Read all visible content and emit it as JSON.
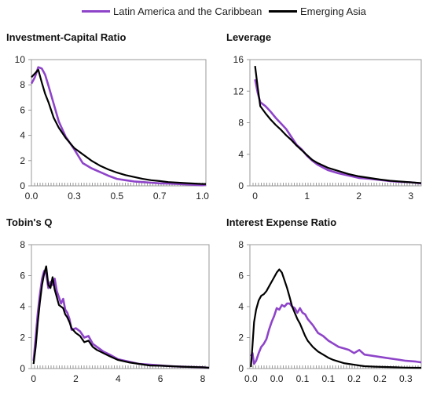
{
  "chart_data": [
    {
      "type": "line",
      "title": "Investment-Capital Ratio",
      "xlabel": "",
      "ylabel": "",
      "xlim": [
        0.0,
        1.02
      ],
      "ylim": [
        0,
        10
      ],
      "xticks": [
        0.0,
        0.25,
        0.5,
        0.75,
        1.0
      ],
      "xtick_labels": [
        "0.0",
        "0.3",
        "0.5",
        "0.7",
        "1.0"
      ],
      "yticks": [
        0,
        2,
        4,
        6,
        8,
        10
      ],
      "ytick_labels": [
        "0",
        "2",
        "4",
        "6",
        "8",
        "10"
      ],
      "legend": "top",
      "series": [
        {
          "name": "Latin America and the Caribbean",
          "color": "#8e44c9",
          "x": [
            0.0,
            0.02,
            0.04,
            0.06,
            0.08,
            0.1,
            0.13,
            0.16,
            0.2,
            0.25,
            0.3,
            0.35,
            0.4,
            0.45,
            0.5,
            0.55,
            0.6,
            0.65,
            0.7,
            0.75,
            0.8,
            0.9,
            1.0,
            1.02
          ],
          "y": [
            8.1,
            8.6,
            9.4,
            9.3,
            8.8,
            7.9,
            6.5,
            5.1,
            3.9,
            2.9,
            1.8,
            1.4,
            1.1,
            0.8,
            0.55,
            0.45,
            0.35,
            0.3,
            0.25,
            0.2,
            0.18,
            0.12,
            0.05,
            0.1
          ]
        },
        {
          "name": "Emerging Asia",
          "color": "#000000",
          "x": [
            0.0,
            0.02,
            0.04,
            0.06,
            0.08,
            0.1,
            0.13,
            0.16,
            0.2,
            0.25,
            0.3,
            0.35,
            0.4,
            0.45,
            0.5,
            0.55,
            0.6,
            0.65,
            0.7,
            0.75,
            0.8,
            0.9,
            1.0,
            1.02
          ],
          "y": [
            8.6,
            8.9,
            9.2,
            8.2,
            7.3,
            6.6,
            5.4,
            4.6,
            3.8,
            3.0,
            2.5,
            2.0,
            1.6,
            1.3,
            1.05,
            0.85,
            0.7,
            0.55,
            0.45,
            0.38,
            0.3,
            0.22,
            0.15,
            0.15
          ]
        }
      ]
    },
    {
      "type": "line",
      "title": "Leverage",
      "xlabel": "",
      "ylabel": "",
      "xlim": [
        -0.1,
        3.2
      ],
      "ylim": [
        0,
        16
      ],
      "xticks": [
        0,
        1,
        2,
        3
      ],
      "xtick_labels": [
        "0",
        "1",
        "2",
        "3"
      ],
      "yticks": [
        0,
        4,
        8,
        12,
        16
      ],
      "ytick_labels": [
        "0",
        "4",
        "8",
        "12",
        "16"
      ],
      "series": [
        {
          "name": "Latin America and the Caribbean",
          "color": "#8e44c9",
          "x": [
            0.0,
            0.05,
            0.1,
            0.2,
            0.3,
            0.4,
            0.5,
            0.6,
            0.7,
            0.8,
            0.9,
            1.0,
            1.1,
            1.2,
            1.4,
            1.6,
            1.8,
            2.0,
            2.2,
            2.4,
            2.6,
            2.8,
            3.0,
            3.2
          ],
          "y": [
            13.5,
            11.8,
            10.6,
            10.1,
            9.4,
            8.6,
            7.9,
            7.2,
            6.2,
            5.2,
            4.6,
            3.8,
            3.2,
            2.7,
            2.0,
            1.6,
            1.3,
            1.0,
            0.9,
            0.75,
            0.6,
            0.5,
            0.45,
            0.3
          ]
        },
        {
          "name": "Emerging Asia",
          "color": "#000000",
          "x": [
            0.0,
            0.05,
            0.1,
            0.2,
            0.3,
            0.4,
            0.5,
            0.6,
            0.7,
            0.8,
            0.9,
            1.0,
            1.1,
            1.2,
            1.4,
            1.6,
            1.8,
            2.0,
            2.2,
            2.4,
            2.6,
            2.8,
            3.0,
            3.2
          ],
          "y": [
            15.2,
            12.5,
            10.1,
            9.2,
            8.4,
            7.7,
            7.1,
            6.4,
            5.8,
            5.1,
            4.5,
            3.9,
            3.3,
            2.9,
            2.3,
            1.9,
            1.5,
            1.2,
            1.0,
            0.8,
            0.65,
            0.55,
            0.45,
            0.35
          ]
        }
      ]
    },
    {
      "type": "line",
      "title": "Tobin's Q",
      "xlabel": "",
      "ylabel": "",
      "xlim": [
        -0.1,
        8.3
      ],
      "ylim": [
        0,
        8
      ],
      "xticks": [
        0,
        2,
        4,
        6,
        8
      ],
      "xtick_labels": [
        "0",
        "2",
        "4",
        "6",
        "8"
      ],
      "yticks": [
        0,
        2,
        4,
        6,
        8
      ],
      "ytick_labels": [
        "0",
        "2",
        "4",
        "6",
        "8"
      ],
      "series": [
        {
          "name": "Latin America and the Caribbean",
          "color": "#8e44c9",
          "x": [
            0.0,
            0.1,
            0.2,
            0.3,
            0.4,
            0.5,
            0.6,
            0.7,
            0.8,
            0.9,
            1.0,
            1.1,
            1.2,
            1.3,
            1.4,
            1.5,
            1.6,
            1.7,
            1.8,
            2.0,
            2.2,
            2.4,
            2.6,
            2.8,
            3.0,
            3.3,
            3.6,
            4.0,
            4.5,
            5.0,
            5.5,
            6.0,
            6.5,
            7.0,
            7.5,
            8.0,
            8.3
          ],
          "y": [
            0.5,
            2.0,
            3.6,
            4.8,
            5.8,
            6.3,
            6.1,
            5.2,
            5.6,
            5.4,
            5.8,
            5.0,
            4.6,
            4.2,
            4.5,
            3.8,
            3.6,
            3.2,
            2.5,
            2.6,
            2.4,
            2.0,
            2.1,
            1.6,
            1.4,
            1.1,
            0.9,
            0.6,
            0.45,
            0.3,
            0.25,
            0.2,
            0.15,
            0.12,
            0.1,
            0.08,
            0.05
          ]
        },
        {
          "name": "Emerging Asia",
          "color": "#000000",
          "x": [
            0.0,
            0.1,
            0.2,
            0.3,
            0.4,
            0.5,
            0.6,
            0.7,
            0.8,
            0.9,
            1.0,
            1.1,
            1.2,
            1.3,
            1.4,
            1.5,
            1.6,
            1.7,
            1.8,
            2.0,
            2.2,
            2.4,
            2.6,
            2.8,
            3.0,
            3.3,
            3.6,
            4.0,
            4.5,
            5.0,
            5.5,
            6.0,
            6.5,
            7.0,
            7.5,
            8.0,
            8.3
          ],
          "y": [
            0.3,
            1.4,
            3.0,
            4.3,
            5.4,
            6.1,
            6.6,
            5.4,
            5.2,
            5.9,
            5.1,
            4.6,
            4.1,
            4.0,
            3.9,
            3.5,
            3.3,
            3.0,
            2.6,
            2.3,
            2.1,
            1.7,
            1.8,
            1.4,
            1.2,
            1.0,
            0.8,
            0.55,
            0.4,
            0.3,
            0.2,
            0.18,
            0.15,
            0.12,
            0.1,
            0.08,
            0.05
          ]
        }
      ]
    },
    {
      "type": "line",
      "title": "Interest Expense Ratio",
      "xlabel": "",
      "ylabel": "",
      "xlim": [
        -0.002,
        0.33
      ],
      "ylim": [
        0,
        8
      ],
      "xticks": [
        0.0,
        0.05,
        0.1,
        0.15,
        0.2,
        0.25,
        0.3
      ],
      "xtick_labels": [
        "0.0",
        "0.0",
        "0.1",
        "0.1",
        "0.2",
        "0.2",
        "0.3"
      ],
      "yticks": [
        0,
        2,
        4,
        6,
        8
      ],
      "ytick_labels": [
        "0",
        "2",
        "4",
        "6",
        "8"
      ],
      "series": [
        {
          "name": "Latin America and the Caribbean",
          "color": "#8e44c9",
          "x": [
            0.0,
            0.003,
            0.006,
            0.01,
            0.015,
            0.02,
            0.025,
            0.03,
            0.035,
            0.04,
            0.045,
            0.05,
            0.055,
            0.06,
            0.065,
            0.07,
            0.075,
            0.08,
            0.085,
            0.09,
            0.095,
            0.1,
            0.105,
            0.11,
            0.12,
            0.13,
            0.14,
            0.15,
            0.16,
            0.17,
            0.18,
            0.19,
            0.2,
            0.21,
            0.22,
            0.24,
            0.26,
            0.28,
            0.3,
            0.32,
            0.33
          ],
          "y": [
            0.8,
            1.0,
            0.3,
            0.5,
            1.0,
            1.4,
            1.6,
            1.9,
            2.5,
            3.0,
            3.4,
            3.9,
            3.8,
            4.1,
            4.0,
            4.2,
            4.2,
            4.0,
            3.9,
            3.6,
            3.9,
            3.6,
            3.5,
            3.2,
            2.8,
            2.3,
            2.1,
            1.8,
            1.6,
            1.4,
            1.3,
            1.2,
            1.0,
            1.2,
            0.9,
            0.8,
            0.7,
            0.6,
            0.5,
            0.45,
            0.4
          ]
        },
        {
          "name": "Emerging Asia",
          "color": "#000000",
          "x": [
            0.0,
            0.003,
            0.006,
            0.01,
            0.015,
            0.02,
            0.025,
            0.03,
            0.035,
            0.04,
            0.045,
            0.05,
            0.055,
            0.06,
            0.065,
            0.07,
            0.075,
            0.08,
            0.085,
            0.09,
            0.095,
            0.1,
            0.105,
            0.11,
            0.12,
            0.13,
            0.14,
            0.15,
            0.16,
            0.17,
            0.18,
            0.19,
            0.2,
            0.21,
            0.22,
            0.24,
            0.26,
            0.28,
            0.3,
            0.32,
            0.33
          ],
          "y": [
            0.1,
            1.5,
            3.0,
            3.8,
            4.4,
            4.7,
            4.8,
            5.0,
            5.3,
            5.6,
            5.9,
            6.2,
            6.4,
            6.2,
            5.7,
            5.2,
            4.6,
            4.0,
            3.6,
            3.2,
            2.9,
            2.5,
            2.1,
            1.8,
            1.4,
            1.1,
            0.9,
            0.7,
            0.55,
            0.45,
            0.35,
            0.3,
            0.25,
            0.2,
            0.15,
            0.12,
            0.1,
            0.08,
            0.06,
            0.05,
            0.05
          ]
        }
      ]
    }
  ]
}
